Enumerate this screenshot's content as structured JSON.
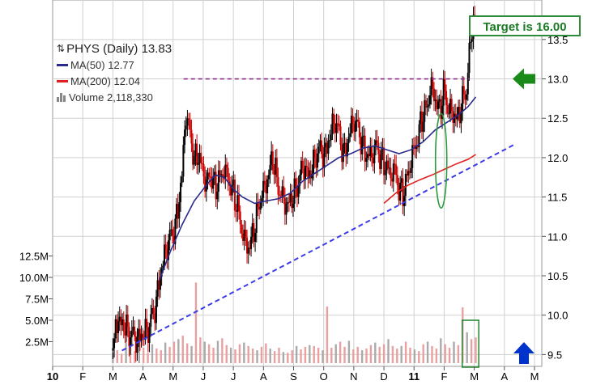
{
  "legend": {
    "title": "PHYS (Daily) 13.83",
    "ma50": "MA(50) 12.77",
    "ma200": "MA(200) 12.04",
    "volume": "Volume 2,118,330"
  },
  "annotation": {
    "target": "Target is 16.00"
  },
  "colors": {
    "up_candle": "#000000",
    "down_candle": "#cc0000",
    "ma50": "#2a2a8c",
    "ma200": "#e02020",
    "volume": "#e8a0a0",
    "volume_gray": "#aaaaaa",
    "resistance": "#8b2a8b",
    "support": "#3b3be8",
    "arrow_green": "#1a8a1a",
    "arrow_blue": "#0033cc",
    "box": "#2e8b3a",
    "grid": "#d0d0d0"
  },
  "chart_data": {
    "type": "candlestick",
    "ticker": "PHYS",
    "x_axis": {
      "labels": [
        "10",
        "F",
        "M",
        "A",
        "M",
        "J",
        "J",
        "A",
        "S",
        "O",
        "N",
        "D",
        "11",
        "F",
        "M",
        "A",
        "M"
      ]
    },
    "price_axis": {
      "side": "right",
      "ticks": [
        "9.5",
        "10.0",
        "10.5",
        "11.0",
        "11.5",
        "12.0",
        "12.5",
        "13.0",
        "13.5"
      ],
      "ylim": [
        9.35,
        13.95
      ]
    },
    "volume_axis": {
      "side": "left",
      "ticks": [
        "2.5M",
        "5.0M",
        "7.5M",
        "10.0M",
        "12.5M"
      ]
    },
    "price_series": [
      {
        "m": 2.0,
        "p": 9.55
      },
      {
        "m": 2.1,
        "p": 9.95
      },
      {
        "m": 2.25,
        "p": 9.9
      },
      {
        "m": 2.4,
        "p": 9.85
      },
      {
        "m": 2.6,
        "p": 9.75
      },
      {
        "m": 2.8,
        "p": 9.7
      },
      {
        "m": 3.0,
        "p": 9.75
      },
      {
        "m": 3.2,
        "p": 9.85
      },
      {
        "m": 3.4,
        "p": 10.1
      },
      {
        "m": 3.55,
        "p": 10.45
      },
      {
        "m": 3.7,
        "p": 10.75
      },
      {
        "m": 3.85,
        "p": 10.95
      },
      {
        "m": 4.0,
        "p": 11.05
      },
      {
        "m": 4.15,
        "p": 11.3
      },
      {
        "m": 4.3,
        "p": 11.8
      },
      {
        "m": 4.42,
        "p": 12.6
      },
      {
        "m": 4.5,
        "p": 12.4
      },
      {
        "m": 4.6,
        "p": 12.25
      },
      {
        "m": 4.7,
        "p": 11.95
      },
      {
        "m": 4.8,
        "p": 12.05
      },
      {
        "m": 4.95,
        "p": 11.9
      },
      {
        "m": 5.1,
        "p": 11.65
      },
      {
        "m": 5.25,
        "p": 11.8
      },
      {
        "m": 5.4,
        "p": 11.6
      },
      {
        "m": 5.55,
        "p": 11.75
      },
      {
        "m": 5.7,
        "p": 11.85
      },
      {
        "m": 5.85,
        "p": 11.7
      },
      {
        "m": 6.0,
        "p": 11.55
      },
      {
        "m": 6.15,
        "p": 11.35
      },
      {
        "m": 6.3,
        "p": 11.05
      },
      {
        "m": 6.45,
        "p": 10.85
      },
      {
        "m": 6.6,
        "p": 10.95
      },
      {
        "m": 6.75,
        "p": 11.2
      },
      {
        "m": 6.9,
        "p": 11.5
      },
      {
        "m": 7.05,
        "p": 11.6
      },
      {
        "m": 7.2,
        "p": 11.85
      },
      {
        "m": 7.3,
        "p": 12.0
      },
      {
        "m": 7.45,
        "p": 11.7
      },
      {
        "m": 7.6,
        "p": 11.5
      },
      {
        "m": 7.75,
        "p": 11.4
      },
      {
        "m": 7.9,
        "p": 11.45
      },
      {
        "m": 8.05,
        "p": 11.55
      },
      {
        "m": 8.2,
        "p": 11.75
      },
      {
        "m": 8.35,
        "p": 11.9
      },
      {
        "m": 8.5,
        "p": 11.75
      },
      {
        "m": 8.65,
        "p": 11.9
      },
      {
        "m": 8.8,
        "p": 12.1
      },
      {
        "m": 8.95,
        "p": 12.05
      },
      {
        "m": 9.1,
        "p": 12.1
      },
      {
        "m": 9.25,
        "p": 12.35
      },
      {
        "m": 9.4,
        "p": 12.5
      },
      {
        "m": 9.55,
        "p": 12.2
      },
      {
        "m": 9.7,
        "p": 12.05
      },
      {
        "m": 9.85,
        "p": 12.3
      },
      {
        "m": 10.0,
        "p": 12.5
      },
      {
        "m": 10.15,
        "p": 12.35
      },
      {
        "m": 10.3,
        "p": 12.15
      },
      {
        "m": 10.45,
        "p": 12.0
      },
      {
        "m": 10.6,
        "p": 12.05
      },
      {
        "m": 10.75,
        "p": 12.15
      },
      {
        "m": 10.9,
        "p": 12.0
      },
      {
        "m": 11.05,
        "p": 11.9
      },
      {
        "m": 11.2,
        "p": 11.8
      },
      {
        "m": 11.35,
        "p": 11.85
      },
      {
        "m": 11.5,
        "p": 11.6
      },
      {
        "m": 11.65,
        "p": 11.55
      },
      {
        "m": 11.8,
        "p": 11.8
      },
      {
        "m": 11.95,
        "p": 12.05
      },
      {
        "m": 12.1,
        "p": 12.2
      },
      {
        "m": 12.25,
        "p": 12.5
      },
      {
        "m": 12.4,
        "p": 12.6
      },
      {
        "m": 12.55,
        "p": 12.9
      },
      {
        "m": 12.7,
        "p": 12.75
      },
      {
        "m": 12.85,
        "p": 12.6
      },
      {
        "m": 13.0,
        "p": 12.85
      },
      {
        "m": 13.15,
        "p": 12.6
      },
      {
        "m": 13.3,
        "p": 12.55
      },
      {
        "m": 13.45,
        "p": 12.5
      },
      {
        "m": 13.6,
        "p": 12.7
      },
      {
        "m": 13.75,
        "p": 12.9
      },
      {
        "m": 13.85,
        "p": 13.35
      },
      {
        "m": 13.95,
        "p": 13.75
      },
      {
        "m": 14.05,
        "p": 13.83
      }
    ],
    "ma50": [
      {
        "m": 3.55,
        "p": 10.45
      },
      {
        "m": 3.9,
        "p": 10.8
      },
      {
        "m": 4.3,
        "p": 11.15
      },
      {
        "m": 4.7,
        "p": 11.45
      },
      {
        "m": 5.1,
        "p": 11.65
      },
      {
        "m": 5.4,
        "p": 11.78
      },
      {
        "m": 5.7,
        "p": 11.75
      },
      {
        "m": 6.0,
        "p": 11.6
      },
      {
        "m": 6.3,
        "p": 11.5
      },
      {
        "m": 6.7,
        "p": 11.42
      },
      {
        "m": 7.1,
        "p": 11.45
      },
      {
        "m": 7.5,
        "p": 11.48
      },
      {
        "m": 7.9,
        "p": 11.55
      },
      {
        "m": 8.3,
        "p": 11.7
      },
      {
        "m": 8.7,
        "p": 11.8
      },
      {
        "m": 9.1,
        "p": 11.9
      },
      {
        "m": 9.5,
        "p": 12.0
      },
      {
        "m": 9.9,
        "p": 12.05
      },
      {
        "m": 10.3,
        "p": 12.12
      },
      {
        "m": 10.7,
        "p": 12.15
      },
      {
        "m": 11.1,
        "p": 12.1
      },
      {
        "m": 11.5,
        "p": 12.05
      },
      {
        "m": 11.9,
        "p": 12.1
      },
      {
        "m": 12.3,
        "p": 12.2
      },
      {
        "m": 12.7,
        "p": 12.35
      },
      {
        "m": 13.1,
        "p": 12.45
      },
      {
        "m": 13.5,
        "p": 12.55
      },
      {
        "m": 13.8,
        "p": 12.65
      },
      {
        "m": 14.05,
        "p": 12.77
      }
    ],
    "ma200": [
      {
        "m": 11.0,
        "p": 11.42
      },
      {
        "m": 11.4,
        "p": 11.55
      },
      {
        "m": 11.8,
        "p": 11.65
      },
      {
        "m": 12.2,
        "p": 11.72
      },
      {
        "m": 12.6,
        "p": 11.78
      },
      {
        "m": 13.0,
        "p": 11.85
      },
      {
        "m": 13.4,
        "p": 11.92
      },
      {
        "m": 13.8,
        "p": 11.98
      },
      {
        "m": 14.05,
        "p": 12.04
      }
    ],
    "volume": [
      1.2,
      1.5,
      1.1,
      2.6,
      2.0,
      1.4,
      3.0,
      1.8,
      1.2,
      2.2,
      1.7,
      1.5,
      2.4,
      1.9,
      2.5,
      2.8,
      3.2,
      2.3,
      2.0,
      9.4,
      3.0,
      2.5,
      2.2,
      1.8,
      2.6,
      2.9,
      2.1,
      1.8,
      1.6,
      2.2,
      2.4,
      2.0,
      1.7,
      1.5,
      1.9,
      2.3,
      1.7,
      1.4,
      1.8,
      1.3,
      1.2,
      1.5,
      2.0,
      1.6,
      1.9,
      2.1,
      2.0,
      1.8,
      1.5,
      6.6,
      1.8,
      2.2,
      2.5,
      1.9,
      2.6,
      1.6,
      1.9,
      1.5,
      1.7,
      2.1,
      2.4,
      1.9,
      2.2,
      2.8,
      2.0,
      1.7,
      2.0,
      2.5,
      1.8,
      1.6,
      1.4,
      2.2,
      2.5,
      2.0,
      1.7,
      2.9,
      2.2,
      1.8,
      2.5,
      2.1,
      6.5,
      3.6,
      2.8,
      3.0
    ],
    "annotations": {
      "resistance_level": 13.0,
      "support_line": [
        {
          "m": 2.3,
          "p": 9.55
        },
        {
          "m": 15.35,
          "p": 12.17
        }
      ],
      "target": 16.0
    }
  }
}
